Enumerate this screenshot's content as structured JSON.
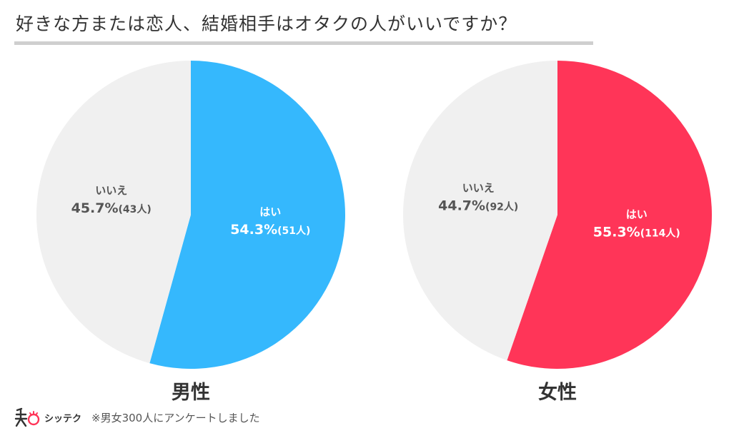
{
  "title": "好きな方または恋人、結婚相手はオタクの人がいいですか？",
  "chart_data": [
    {
      "type": "pie",
      "title": "男性",
      "start_angle_deg": 0,
      "direction": "clockwise",
      "slices": [
        {
          "label": "はい",
          "percent": 54.3,
          "count": 51,
          "percent_text": "54.3%",
          "count_text": "(51人)",
          "color": "#35b8fd",
          "text_color": "#ffffff"
        },
        {
          "label": "いいえ",
          "percent": 45.7,
          "count": 43,
          "percent_text": "45.7%",
          "count_text": "(43人)",
          "color": "#f0f0f0",
          "text_color": "#555555"
        }
      ]
    },
    {
      "type": "pie",
      "title": "女性",
      "start_angle_deg": 0,
      "direction": "clockwise",
      "slices": [
        {
          "label": "はい",
          "percent": 55.3,
          "count": 114,
          "percent_text": "55.3%",
          "count_text": "(114人)",
          "color": "#ff3558",
          "text_color": "#ffffff"
        },
        {
          "label": "いいえ",
          "percent": 44.7,
          "count": 92,
          "percent_text": "44.7%",
          "count_text": "(92人)",
          "color": "#f0f0f0",
          "text_color": "#555555"
        }
      ]
    }
  ],
  "footer": {
    "logo_text": "シッテク",
    "note": "※男女300人にアンケートしました"
  },
  "colors": {
    "logo_accent": "#ff3558",
    "text": "#333333"
  }
}
